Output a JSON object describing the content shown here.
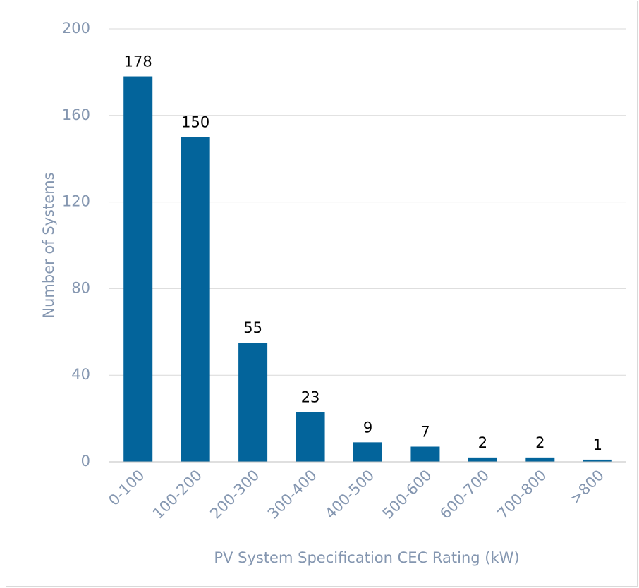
{
  "chart_data": {
    "type": "bar",
    "categories": [
      "0-100",
      "100-200",
      "200-300",
      "300-400",
      "400-500",
      "500-600",
      "600-700",
      "700-800",
      ">800"
    ],
    "values": [
      178,
      150,
      55,
      23,
      9,
      7,
      2,
      2,
      1
    ],
    "color": "#03649b",
    "xlabel": "PV System Specification CEC Rating (kW)",
    "ylabel": "Number of Systems",
    "ylim": [
      0,
      200
    ],
    "yticks": [
      0,
      40,
      80,
      120,
      160,
      200
    ],
    "grid": true
  }
}
